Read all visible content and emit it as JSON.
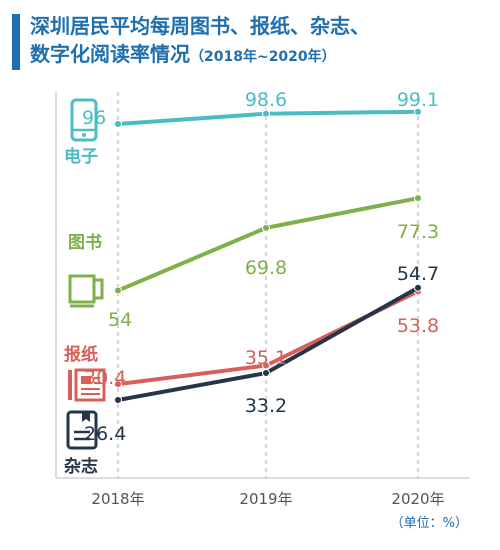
{
  "title": {
    "line1": "深圳居民平均每周图书、报纸、杂志、",
    "line2": "数字化阅读率情况",
    "range": "（2018年~2020年）"
  },
  "unit_note": "（单位：%）",
  "colors": {
    "title": "#1f6fae",
    "accent_bar": "#1f6fae",
    "digital": "#4bbcc6",
    "books": "#7fb04a",
    "newspaper": "#d9605a",
    "magazine": "#26354a",
    "axis": "#aaaaaa",
    "tick_text": "#555555"
  },
  "chart_data": {
    "type": "line",
    "categories": [
      "2018年",
      "2019年",
      "2020年"
    ],
    "series": [
      {
        "name": "电子",
        "key": "digital",
        "icon": "phone-icon",
        "values": [
          96,
          98.6,
          99.1
        ]
      },
      {
        "name": "图书",
        "key": "books",
        "icon": "book-icon",
        "values": [
          54,
          69.8,
          77.3
        ]
      },
      {
        "name": "报纸",
        "key": "newspaper",
        "icon": "newspaper-icon",
        "values": [
          30.4,
          35.1,
          53.8
        ]
      },
      {
        "name": "杂志",
        "key": "magazine",
        "icon": "magazine-icon",
        "values": [
          26.4,
          33.2,
          54.7
        ]
      }
    ],
    "ylim": [
      20,
      100
    ],
    "grid": "vertical dashed",
    "legend": "left"
  }
}
